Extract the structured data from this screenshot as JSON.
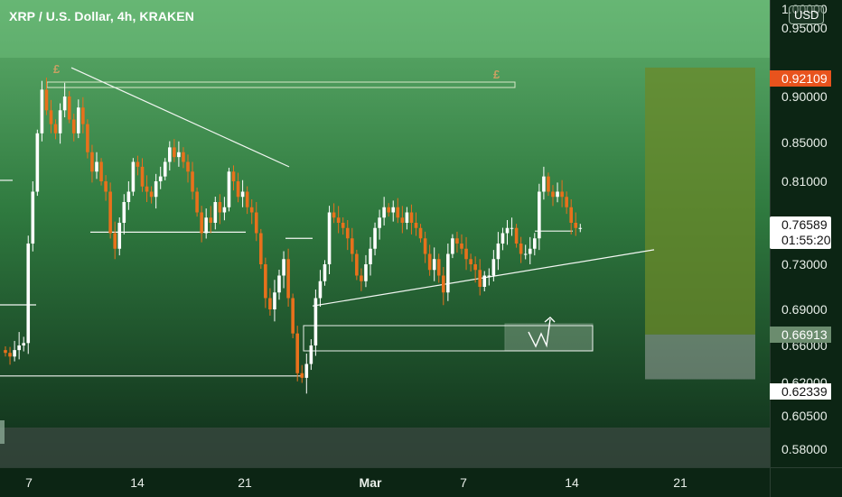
{
  "header": {
    "symbol_title": "XRP / U.S. Dollar, 4h, KRAKEN",
    "currency_button": "USD"
  },
  "colors": {
    "up_candle": "#ffffff",
    "down_candle": "#e8711c",
    "background_top": "#5fae6c",
    "background_bottom": "#0f2c19",
    "high_badge": "#e8531d",
    "target_zone": "#6b8a2a",
    "stop_zone": "#9aa39e"
  },
  "annotations": {
    "pound_left": "£",
    "pound_right": "£"
  },
  "price_badges": {
    "high": "0.92109",
    "last_price": "0.76589",
    "countdown": "01:55:20",
    "mid": "0.66913",
    "low": "0.62339"
  },
  "chart_data": {
    "type": "candlestick",
    "title": "XRP / U.S. Dollar, 4h, KRAKEN",
    "xlabel": "",
    "ylabel": "",
    "y_ticks": [
      "0.95000",
      "0.90000",
      "0.85000",
      "0.81000",
      "0.73000",
      "0.69000",
      "0.66000",
      "0.62000",
      "0.60500",
      "0.58000"
    ],
    "x_ticks": [
      "7",
      "14",
      "21",
      "Mar",
      "7",
      "14",
      "21"
    ],
    "y_top_label": "1.00000",
    "ylim": [
      0.56,
      1.0
    ],
    "last_price": 0.76589,
    "grid": false,
    "candles_close": [
      0.652,
      0.648,
      0.655,
      0.66,
      0.662,
      0.75,
      0.8,
      0.86,
      0.905,
      0.885,
      0.87,
      0.86,
      0.885,
      0.9,
      0.875,
      0.86,
      0.888,
      0.87,
      0.84,
      0.82,
      0.83,
      0.81,
      0.8,
      0.76,
      0.745,
      0.77,
      0.79,
      0.8,
      0.83,
      0.825,
      0.805,
      0.8,
      0.795,
      0.81,
      0.815,
      0.83,
      0.845,
      0.835,
      0.84,
      0.83,
      0.82,
      0.8,
      0.78,
      0.76,
      0.775,
      0.77,
      0.79,
      0.78,
      0.785,
      0.82,
      0.81,
      0.795,
      0.8,
      0.785,
      0.78,
      0.76,
      0.73,
      0.7,
      0.69,
      0.705,
      0.72,
      0.735,
      0.7,
      0.67,
      0.63,
      0.625,
      0.64,
      0.66,
      0.7,
      0.715,
      0.73,
      0.78,
      0.775,
      0.77,
      0.765,
      0.755,
      0.74,
      0.72,
      0.715,
      0.73,
      0.745,
      0.765,
      0.775,
      0.785,
      0.78,
      0.785,
      0.775,
      0.77,
      0.78,
      0.77,
      0.765,
      0.755,
      0.74,
      0.725,
      0.735,
      0.72,
      0.705,
      0.74,
      0.755,
      0.75,
      0.745,
      0.735,
      0.73,
      0.725,
      0.71,
      0.72,
      0.72,
      0.735,
      0.75,
      0.76,
      0.765,
      0.765,
      0.75,
      0.74,
      0.74,
      0.745,
      0.755,
      0.8,
      0.815,
      0.8,
      0.795,
      0.8,
      0.795,
      0.785,
      0.77,
      0.765,
      0.765
    ],
    "trendlines": [
      {
        "from": [
          79,
          0.921
        ],
        "to": [
          320,
          0.825
        ]
      },
      {
        "from": [
          346,
          0.693
        ],
        "to": [
          724,
          0.744
        ]
      },
      {
        "from": [
          100,
          0.761
        ],
        "to": [
          272,
          0.761
        ]
      },
      {
        "from": [
          0,
          0.811
        ],
        "to": [
          14,
          0.811
        ]
      },
      {
        "from": [
          0,
          0.694
        ],
        "to": [
          40,
          0.694
        ]
      },
      {
        "from": [
          0,
          0.627
        ],
        "to": [
          334,
          0.627
        ]
      },
      {
        "from": [
          316,
          0.755
        ],
        "to": [
          346,
          0.755
        ]
      },
      {
        "from": [
          592,
          0.762
        ],
        "to": [
          634,
          0.762
        ]
      }
    ],
    "zones": [
      {
        "name": "",
        "from": 0.66913,
        "to": 0.92109
      },
      {
        "name": "",
        "from": 0.62339,
        "to": 0.66913
      },
      {
        "name": "",
        "from": 0.9,
        "to": 0.9
      },
      {
        "name": "",
        "from": 0.658,
        "to": 0.675
      }
    ]
  }
}
